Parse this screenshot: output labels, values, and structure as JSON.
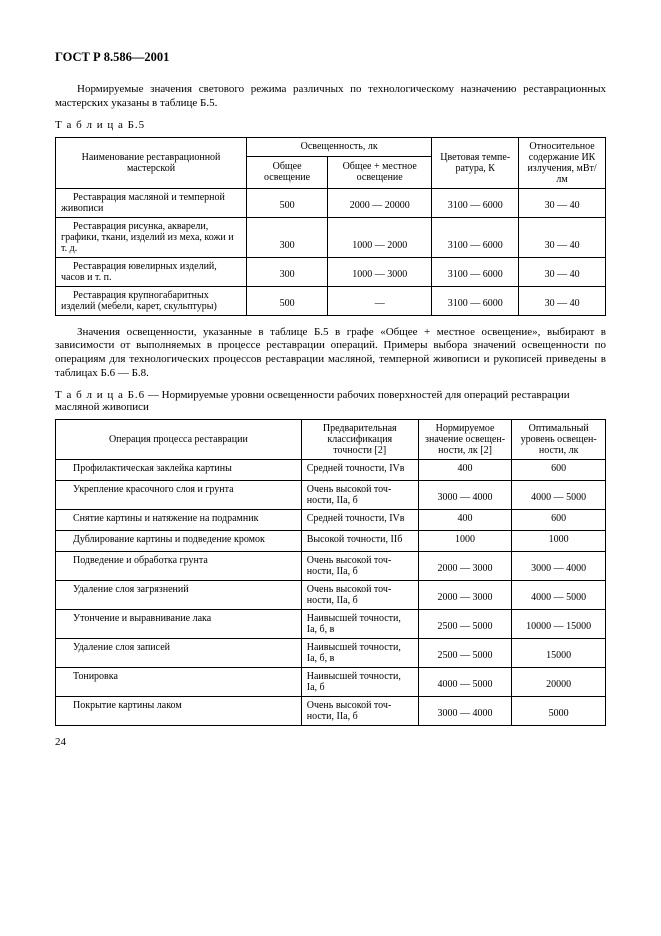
{
  "doc_id": "ГОСТ Р 8.586—2001",
  "intro_para": "Нормируемые значения светового режима различных по технологическому назначению реставрационных мастерских указаны в таблице Б.5.",
  "t5_caption": "Т а б л и ц а Б.5",
  "t5_head": {
    "c1": "Наименование реставрационной мастерской",
    "c2": "Освещенность, лк",
    "c2a": "Общее освещение",
    "c2b": "Общее + местное освещение",
    "c3": "Цветовая темпе­ратура, К",
    "c4": "Относительное содержание ИК излучения, мВт/лм"
  },
  "t5_rows": [
    {
      "name": "Реставрация масляной и темпер­ной живописи",
      "a": "500",
      "b": "2000 — 20000",
      "c": "3100 — 6000",
      "d": "30 — 40"
    },
    {
      "name": "Реставрация рисунка, акварели, графики, ткани, изделий из меха, кожи и т. д.",
      "a": "300",
      "b": "1000 — 2000",
      "c": "3100 — 6000",
      "d": "30 — 40"
    },
    {
      "name": "Реставрация ювелирных изде­лий, часов и т. п.",
      "a": "300",
      "b": "1000 — 3000",
      "c": "3100 — 6000",
      "d": "30 — 40"
    },
    {
      "name": "Реставрация крупногабаритных изделий (мебели, карет, скульпту­ры)",
      "a": "500",
      "b": "—",
      "c": "3100 — 6000",
      "d": "30 — 40"
    }
  ],
  "mid_para": "Значения освещенности, указанные в таблице Б.5 в графе «Общее + местное освещение», выбирают в зависимости от выполняемых в процессе реставрации операций. Примеры выбора значений освещенности по операциям для технологических процессов реставрации масляной, темперной живописи и рукописей приведе­ны в таблицах Б.6 — Б.8.",
  "t6_caption_pref": "Т а б л и ц а  Б.6",
  "t6_caption_rest": " — Нормируемые уровни освещенности рабочих поверхностей для операций реставрации масляной живописи",
  "t6_head": {
    "c1": "Операция процесса реставрации",
    "c2": "Предварительная классификация точности [2]",
    "c3": "Нормируемое значение освещен­ности, лк [2]",
    "c4": "Оптимальный уровень освещен­ности, лк"
  },
  "t6_rows": [
    {
      "op": "Профилактическая заклейка картины",
      "cl": "Средней точности, IVв",
      "n": "400",
      "o": "600"
    },
    {
      "op": "Укрепление красочного слоя и грунта",
      "cl": "Очень высокой точ­ности, IIа, б",
      "n": "3000 — 4000",
      "o": "4000 — 5000"
    },
    {
      "op": "Снятие картины и натяжение на подрамник",
      "cl": "Средней точности, IVв",
      "n": "400",
      "o": "600"
    },
    {
      "op": "Дублирование картины и подведение кромок",
      "cl": "Высокой точности, IIб",
      "n": "1000",
      "o": "1000"
    },
    {
      "op": "Подведение и обработка грунта",
      "cl": "Очень высокой точ­ности, IIа, б",
      "n": "2000 — 3000",
      "o": "3000 — 4000"
    },
    {
      "op": "Удаление слоя загрязнений",
      "cl": "Очень высокой точ­ности, IIа, б",
      "n": "2000 — 3000",
      "o": "4000 — 5000"
    },
    {
      "op": "Утончение и выравнивание лака",
      "cl": "Наивысшей точнос­ти, Iа, б, в",
      "n": "2500 — 5000",
      "o": "10000 — 15000"
    },
    {
      "op": "Удаление слоя записей",
      "cl": "Наивысшей точнос­ти, Iа, б, в",
      "n": "2500 — 5000",
      "o": "15000"
    },
    {
      "op": "Тонировка",
      "cl": "Наивысшей точнос­ти, Iа, б",
      "n": "4000 — 5000",
      "o": "20000"
    },
    {
      "op": "Покрытие картины лаком",
      "cl": "Очень высокой точ­ности, IIа, б",
      "n": "3000 — 4000",
      "o": "5000"
    }
  ],
  "page_num": "24"
}
